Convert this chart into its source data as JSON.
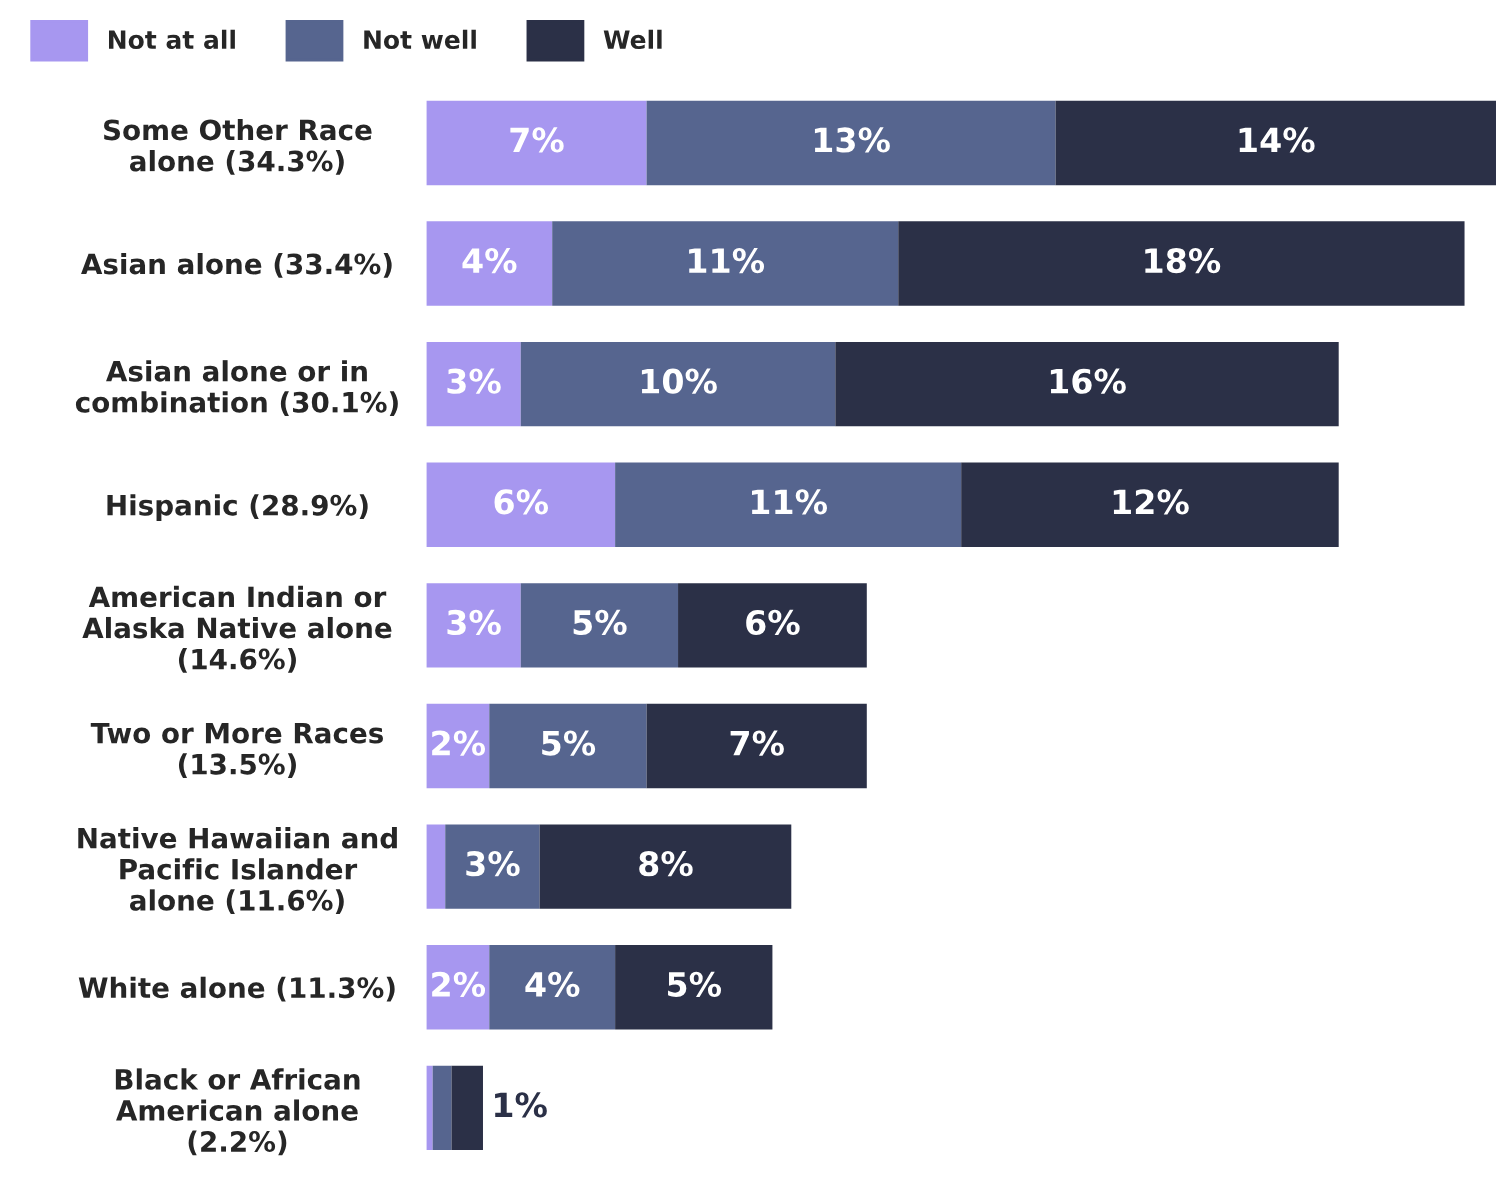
{
  "chart_data": {
    "type": "bar",
    "orientation": "horizontal",
    "stacked": true,
    "legend": "top left",
    "categories": [
      "Some Other Race\nalone (34.3%)",
      "Asian alone (33.4%)",
      "Asian alone or in\ncombination (30.1%)",
      "Hispanic (28.9%)",
      "American Indian or\nAlaska Native alone\n(14.6%)",
      "Two or More Races\n(13.5%)",
      "Native Hawaiian and\nPacific Islander\nalone (11.6%)",
      "White alone (11.3%)",
      "Black or African\nAmerican alone\n(2.2%)"
    ],
    "series": [
      {
        "name": "Not at all",
        "color": "#a797f0",
        "values": [
          7,
          4,
          3,
          6,
          3,
          2,
          0.6,
          2,
          0.2
        ],
        "value_labels": [
          "7%",
          "4%",
          "3%",
          "6%",
          "3%",
          "2%",
          null,
          "2%",
          null
        ]
      },
      {
        "name": "Not well",
        "color": "#56658f",
        "values": [
          13,
          11,
          10,
          11,
          5,
          5,
          3,
          4,
          0.6
        ],
        "value_labels": [
          "13%",
          "11%",
          "10%",
          "11%",
          "5%",
          "5%",
          "3%",
          "4%",
          null
        ]
      },
      {
        "name": "Well",
        "color": "#2b3047",
        "values": [
          14,
          18,
          16,
          12,
          6,
          7,
          8,
          5,
          1
        ],
        "value_labels": [
          "14%",
          "18%",
          "16%",
          "12%",
          "6%",
          "7%",
          "8%",
          "5%",
          "1%"
        ]
      }
    ]
  }
}
